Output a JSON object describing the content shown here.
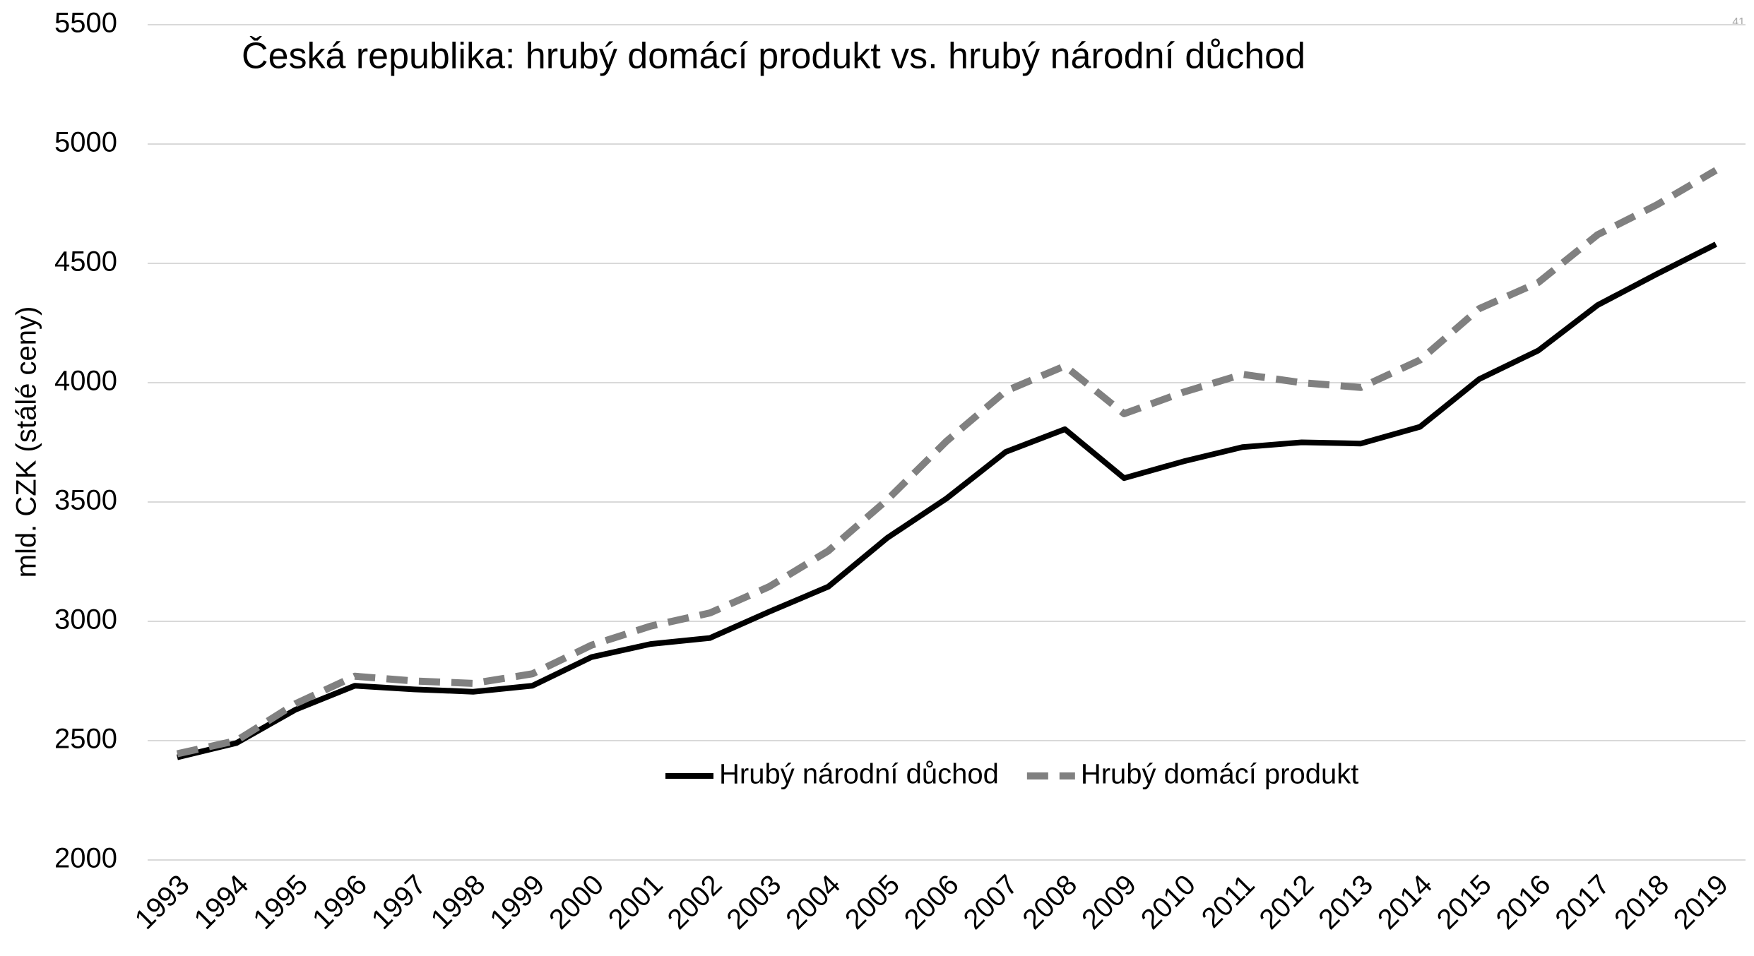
{
  "page_number": "41",
  "chart_data": {
    "type": "line",
    "title": "Česká republika: hrubý domácí produkt vs. hrubý národní důchod",
    "y_label": "mld. CZK (stálé ceny)",
    "categories": [
      "1993",
      "1994",
      "1995",
      "1996",
      "1997",
      "1998",
      "1999",
      "2000",
      "2001",
      "2002",
      "2003",
      "2004",
      "2005",
      "2006",
      "2007",
      "2008",
      "2009",
      "2010",
      "2011",
      "2012",
      "2013",
      "2014",
      "2015",
      "2016",
      "2017",
      "2018",
      "2019"
    ],
    "series": [
      {
        "name": "Hrubý národní důchod",
        "color": "#000000",
        "dashed": false,
        "values": [
          2430,
          2490,
          2630,
          2730,
          2715,
          2705,
          2730,
          2850,
          2905,
          2930,
          3040,
          3145,
          3350,
          3515,
          3710,
          3805,
          3600,
          3670,
          3730,
          3750,
          3745,
          3815,
          4015,
          4135,
          4325,
          4455,
          4580
        ]
      },
      {
        "name": "Hrubý domácí produkt",
        "color": "#808080",
        "dashed": true,
        "values": [
          2445,
          2500,
          2655,
          2770,
          2750,
          2740,
          2780,
          2900,
          2980,
          3035,
          3145,
          3295,
          3510,
          3755,
          3965,
          4070,
          3870,
          3960,
          4035,
          4000,
          3980,
          4095,
          4310,
          4420,
          4620,
          4745,
          4890
        ]
      }
    ],
    "ylim": [
      2000,
      5500
    ],
    "yticks": [
      2000,
      2500,
      3000,
      3500,
      4000,
      4500,
      5000,
      5500
    ],
    "grid": true,
    "legend": "bottom-center"
  }
}
